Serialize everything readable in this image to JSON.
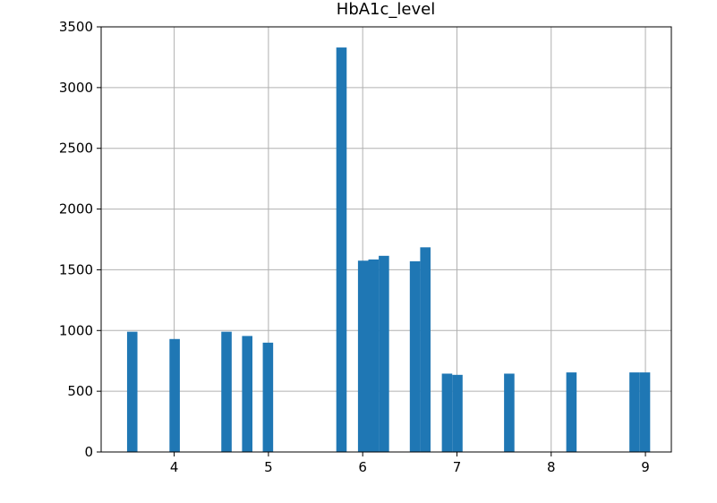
{
  "chart_data": {
    "type": "bar",
    "title": "HbA1c_level",
    "xlabel": "",
    "ylabel": "",
    "xlim": [
      3.225,
      9.275
    ],
    "ylim": [
      0,
      3500
    ],
    "grid": true,
    "bar_color": "#1f77b4",
    "bin_width": 0.11,
    "bars": [
      {
        "x": 3.5,
        "value": 990
      },
      {
        "x": 3.95,
        "value": 930
      },
      {
        "x": 4.5,
        "value": 990
      },
      {
        "x": 4.72,
        "value": 955
      },
      {
        "x": 4.94,
        "value": 900
      },
      {
        "x": 5.72,
        "value": 3330
      },
      {
        "x": 5.95,
        "value": 1575
      },
      {
        "x": 6.06,
        "value": 1585
      },
      {
        "x": 6.17,
        "value": 1615
      },
      {
        "x": 6.5,
        "value": 1570
      },
      {
        "x": 6.61,
        "value": 1685
      },
      {
        "x": 6.84,
        "value": 645
      },
      {
        "x": 6.95,
        "value": 635
      },
      {
        "x": 7.5,
        "value": 645
      },
      {
        "x": 8.16,
        "value": 655
      },
      {
        "x": 8.83,
        "value": 655
      },
      {
        "x": 8.94,
        "value": 655
      }
    ],
    "x_ticks": [
      {
        "value": 4,
        "label": "4"
      },
      {
        "value": 5,
        "label": "5"
      },
      {
        "value": 6,
        "label": "6"
      },
      {
        "value": 7,
        "label": "7"
      },
      {
        "value": 8,
        "label": "8"
      },
      {
        "value": 9,
        "label": "9"
      }
    ],
    "y_ticks": [
      {
        "value": 0,
        "label": "0"
      },
      {
        "value": 500,
        "label": "500"
      },
      {
        "value": 1000,
        "label": "1000"
      },
      {
        "value": 1500,
        "label": "1500"
      },
      {
        "value": 2000,
        "label": "2000"
      },
      {
        "value": 2500,
        "label": "2500"
      },
      {
        "value": 3000,
        "label": "3000"
      },
      {
        "value": 3500,
        "label": "3500"
      }
    ]
  }
}
